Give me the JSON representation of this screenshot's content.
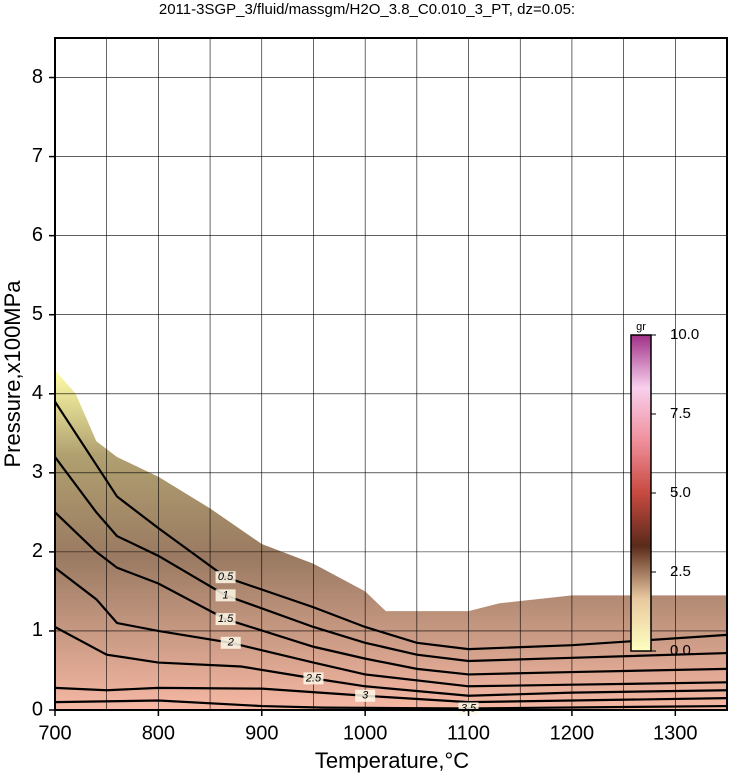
{
  "chart_data": {
    "type": "contour",
    "title": "2011-3SGP_3/fluid/massgm/H2O_3.8_C0.010_3_PT, dz=0.05:",
    "xlabel": "Temperature,°C",
    "ylabel": "Pressure,x100MPa",
    "xlim": [
      700,
      1350
    ],
    "ylim": [
      0,
      8.5
    ],
    "xticks": [
      700,
      800,
      900,
      1000,
      1100,
      1200,
      1300
    ],
    "yticks": [
      0,
      1,
      2,
      3,
      4,
      5,
      6,
      7,
      8
    ],
    "xgridlines": [
      750,
      800,
      850,
      900,
      950,
      1000,
      1050,
      1100,
      1150,
      1200,
      1250,
      1300
    ],
    "grid": true,
    "domain": {
      "x": [
        700,
        720,
        740,
        760,
        800,
        850,
        900,
        950,
        1000,
        1020,
        1100,
        1130,
        1200,
        1350
      ],
      "y": [
        4.3,
        4.0,
        3.4,
        3.2,
        2.95,
        2.55,
        2.1,
        1.85,
        1.5,
        1.25,
        1.25,
        1.35,
        1.45,
        1.45
      ]
    },
    "series": [
      {
        "name": "0.5",
        "color": "#000000",
        "x": [
          700,
          740,
          760,
          800,
          865,
          950,
          1000,
          1050,
          1100,
          1200,
          1350
        ],
        "y": [
          3.9,
          3.1,
          2.7,
          2.3,
          1.68,
          1.3,
          1.05,
          0.85,
          0.77,
          0.82,
          0.95
        ]
      },
      {
        "name": "1",
        "color": "#000000",
        "x": [
          700,
          740,
          760,
          800,
          865,
          950,
          1000,
          1050,
          1100,
          1200,
          1350
        ],
        "y": [
          3.2,
          2.5,
          2.2,
          1.95,
          1.45,
          1.05,
          0.85,
          0.7,
          0.62,
          0.66,
          0.72
        ]
      },
      {
        "name": "1.5",
        "color": "#000000",
        "x": [
          700,
          740,
          760,
          800,
          865,
          950,
          1000,
          1050,
          1100,
          1200,
          1350
        ],
        "y": [
          2.5,
          2.0,
          1.8,
          1.6,
          1.15,
          0.8,
          0.65,
          0.52,
          0.45,
          0.48,
          0.52
        ]
      },
      {
        "name": "2",
        "color": "#000000",
        "x": [
          700,
          740,
          760,
          800,
          870,
          950,
          1000,
          1100,
          1200,
          1350
        ],
        "y": [
          1.8,
          1.4,
          1.1,
          1.0,
          0.85,
          0.6,
          0.45,
          0.3,
          0.32,
          0.35
        ]
      },
      {
        "name": "2.5",
        "color": "#000000",
        "x": [
          700,
          750,
          800,
          880,
          950,
          1000,
          1100,
          1200,
          1350
        ],
        "y": [
          1.05,
          0.7,
          0.6,
          0.55,
          0.4,
          0.3,
          0.18,
          0.22,
          0.25
        ]
      },
      {
        "name": "3",
        "color": "#000000",
        "x": [
          700,
          750,
          800,
          900,
          1000,
          1100,
          1200,
          1350
        ],
        "y": [
          0.28,
          0.25,
          0.28,
          0.27,
          0.18,
          0.1,
          0.12,
          0.15
        ]
      },
      {
        "name": "3.5",
        "color": "#000000",
        "x": [
          700,
          800,
          900,
          960,
          1100,
          1350
        ],
        "y": [
          0.1,
          0.12,
          0.05,
          0.03,
          0.02,
          0.05
        ]
      }
    ],
    "colorbar": {
      "label": "gr",
      "lim": [
        0,
        10
      ],
      "ticks": [
        {
          "value": 0,
          "label": "0.0"
        },
        {
          "value": 2.5,
          "label": "2.5"
        },
        {
          "value": 5,
          "label": "5.0"
        },
        {
          "value": 7.5,
          "label": "7.5"
        },
        {
          "value": 10,
          "label": "10.0"
        }
      ],
      "colors": [
        "#ffffc0",
        "#e8c8a0",
        "#5a2a1a",
        "#c84a40",
        "#f0909c",
        "#f8d0ee",
        "#a03088"
      ]
    }
  }
}
